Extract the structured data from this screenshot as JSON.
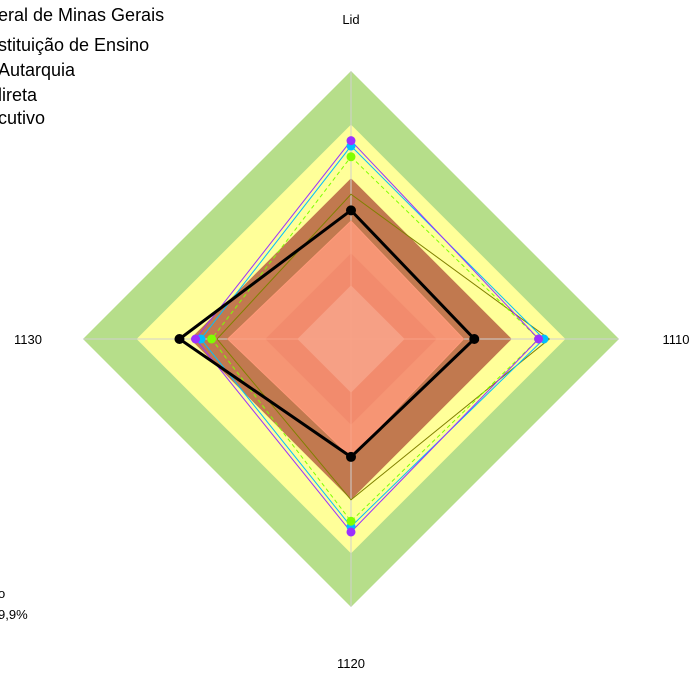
{
  "legend_text": [
    "eral de Minas Gerais",
    "stituição de Ensino",
    "Autarquia",
    "lireta",
    "cutivo"
  ],
  "fragments": [
    "o",
    "9,9%"
  ],
  "chart_data": {
    "type": "radar",
    "axes": [
      "Lid",
      "1110",
      "1120",
      "1130"
    ],
    "range": [
      0,
      5
    ],
    "bands": [
      {
        "from": 0,
        "to": 1,
        "color": "#c0c0c0"
      },
      {
        "from": 1,
        "to": 1.6,
        "color": "#a83b25"
      },
      {
        "from": 1.6,
        "to": 3.0,
        "color": "#c1794f"
      },
      {
        "from": 3.0,
        "to": 4.0,
        "color": "#ffff99"
      },
      {
        "from": 4.0,
        "to": 5.0,
        "color": "#b6de8a"
      }
    ],
    "series": [
      {
        "color": "#ff9a7a",
        "dash": false,
        "values": [
          2.2,
          2.1,
          2.2,
          2.3
        ],
        "filled": true
      },
      {
        "color": "#808000",
        "dash": false,
        "values": [
          2.7,
          3.7,
          3.0,
          2.5
        ],
        "filled": false
      },
      {
        "color": "#00bfff",
        "dash": false,
        "values": [
          3.6,
          3.6,
          3.5,
          2.8
        ],
        "marker": true
      },
      {
        "color": "#7fff00",
        "dash": true,
        "values": [
          3.4,
          3.5,
          3.4,
          2.6
        ],
        "marker": true
      },
      {
        "color": "#9b30ff",
        "dash": false,
        "values": [
          3.7,
          3.5,
          3.6,
          2.9
        ],
        "marker": true
      },
      {
        "color": "#000000",
        "dash": false,
        "values": [
          2.4,
          2.3,
          2.2,
          3.2
        ],
        "marker": true,
        "bold": true
      }
    ]
  }
}
